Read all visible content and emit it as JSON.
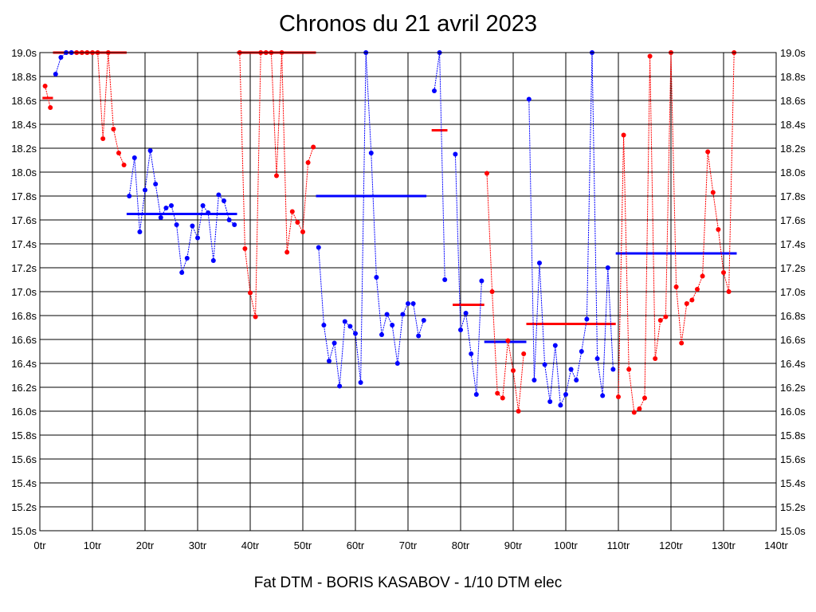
{
  "chart_data": {
    "type": "line",
    "title": "Chronos du 21 avril 2023",
    "xlabel": "Fat DTM - BORIS KASABOV - 1/10 DTM elec",
    "ylabel": "",
    "xlim": [
      0,
      140
    ],
    "ylim": [
      15.0,
      19.0
    ],
    "grid": true,
    "x_ticks": [
      {
        "value": 0,
        "label": "0tr"
      },
      {
        "value": 10,
        "label": "10tr"
      },
      {
        "value": 20,
        "label": "20tr"
      },
      {
        "value": 30,
        "label": "30tr"
      },
      {
        "value": 40,
        "label": "40tr"
      },
      {
        "value": 50,
        "label": "50tr"
      },
      {
        "value": 60,
        "label": "60tr"
      },
      {
        "value": 70,
        "label": "70tr"
      },
      {
        "value": 80,
        "label": "80tr"
      },
      {
        "value": 90,
        "label": "90tr"
      },
      {
        "value": 100,
        "label": "100tr"
      },
      {
        "value": 110,
        "label": "110tr"
      },
      {
        "value": 120,
        "label": "120tr"
      },
      {
        "value": 130,
        "label": "130tr"
      },
      {
        "value": 140,
        "label": "140tr"
      }
    ],
    "y_ticks": [
      {
        "value": 15.0,
        "label": "15.0s"
      },
      {
        "value": 15.2,
        "label": "15.2s"
      },
      {
        "value": 15.4,
        "label": "15.4s"
      },
      {
        "value": 15.6,
        "label": "15.6s"
      },
      {
        "value": 15.8,
        "label": "15.8s"
      },
      {
        "value": 16.0,
        "label": "16.0s"
      },
      {
        "value": 16.2,
        "label": "16.2s"
      },
      {
        "value": 16.4,
        "label": "16.4s"
      },
      {
        "value": 16.6,
        "label": "16.6s"
      },
      {
        "value": 16.8,
        "label": "16.8s"
      },
      {
        "value": 17.0,
        "label": "17.0s"
      },
      {
        "value": 17.2,
        "label": "17.2s"
      },
      {
        "value": 17.4,
        "label": "17.4s"
      },
      {
        "value": 17.6,
        "label": "17.6s"
      },
      {
        "value": 17.8,
        "label": "17.8s"
      },
      {
        "value": 18.0,
        "label": "18.0s"
      },
      {
        "value": 18.2,
        "label": "18.2s"
      },
      {
        "value": 18.4,
        "label": "18.4s"
      },
      {
        "value": 18.6,
        "label": "18.6s"
      },
      {
        "value": 18.8,
        "label": "18.8s"
      },
      {
        "value": 19.0,
        "label": "19.0s"
      }
    ],
    "colors": {
      "red": "#ff0000",
      "blue": "#0000ff",
      "grid": "#000000"
    },
    "series": [
      {
        "color": "#ff0000",
        "x": [
          1,
          2
        ],
        "y": [
          18.72,
          18.54
        ],
        "avg": 18.62
      },
      {
        "color": "#0000ff",
        "x": [
          3,
          4,
          5,
          6
        ],
        "y": [
          18.82,
          18.96,
          19.0,
          19.0
        ],
        "avg": null
      },
      {
        "color": "#ff0000",
        "x": [
          7,
          8,
          9,
          10,
          11,
          12,
          13,
          14,
          15,
          16
        ],
        "y": [
          19.0,
          19.0,
          19.0,
          19.0,
          19.0,
          18.28,
          19.0,
          18.36,
          18.16,
          18.06
        ],
        "avg": 19.0,
        "avg_x": [
          3,
          16
        ]
      },
      {
        "color": "#0000ff",
        "x": [
          17,
          18,
          19,
          20,
          21,
          22,
          23,
          24,
          25,
          26,
          27,
          28,
          29,
          30,
          31,
          32,
          33,
          34,
          35,
          36,
          37
        ],
        "y": [
          17.8,
          18.12,
          17.5,
          17.85,
          18.18,
          17.9,
          17.62,
          17.7,
          17.72,
          17.56,
          17.16,
          17.28,
          17.55,
          17.45,
          17.72,
          17.66,
          17.26,
          17.81,
          17.76,
          17.6,
          17.56
        ],
        "avg": 17.65
      },
      {
        "color": "#ff0000",
        "x": [
          38,
          39,
          40,
          41,
          42,
          43,
          44,
          45,
          46,
          47,
          48,
          49,
          50,
          51,
          52
        ],
        "y": [
          19.0,
          17.36,
          16.99,
          16.79,
          19.0,
          19.0,
          19.0,
          17.97,
          19.0,
          17.33,
          17.67,
          17.58,
          17.5,
          18.08,
          18.21
        ],
        "avg": 19.0,
        "avg_x": [
          38,
          52
        ]
      },
      {
        "color": "#0000ff",
        "x": [
          53,
          54,
          55,
          56,
          57,
          58,
          59,
          60,
          61,
          62,
          63,
          64,
          65,
          66,
          67,
          68,
          69,
          70,
          71,
          72,
          73
        ],
        "y": [
          17.37,
          16.72,
          16.42,
          16.57,
          16.21,
          16.75,
          16.71,
          16.65,
          16.24,
          19.0,
          18.16,
          17.12,
          16.64,
          16.81,
          16.72,
          16.4,
          16.81,
          16.9,
          16.9,
          16.63,
          16.76
        ],
        "avg": 17.8
      },
      {
        "color": "#0000ff",
        "x": [
          75,
          76,
          77
        ],
        "y": [
          18.68,
          19.0,
          17.1
        ],
        "avg": 18.35,
        "avg_color": "#ff0000"
      },
      {
        "color": "#0000ff",
        "x": [
          79,
          80,
          81,
          82,
          83,
          84
        ],
        "y": [
          18.15,
          16.68,
          16.82,
          16.48,
          16.14,
          17.09
        ],
        "avg": 16.89,
        "avg_color": "#ff0000"
      },
      {
        "color": "#ff0000",
        "x": [
          85,
          86,
          87,
          88,
          89,
          90,
          91,
          92
        ],
        "y": [
          17.99,
          17.0,
          16.15,
          16.11,
          16.59,
          16.34,
          16.0,
          16.48
        ],
        "avg": 16.58,
        "avg_color": "#0000ff"
      },
      {
        "color": "#0000ff",
        "x": [
          93,
          94,
          95,
          96,
          97,
          98,
          99,
          100,
          101,
          102,
          103,
          104,
          105,
          106,
          107,
          108,
          109
        ],
        "y": [
          18.61,
          16.26,
          17.24,
          16.39,
          16.08,
          16.55,
          16.05,
          16.14,
          16.35,
          16.26,
          16.5,
          16.77,
          19.0,
          16.44,
          16.13,
          17.2,
          16.35
        ],
        "avg": 16.73,
        "avg_color": "#ff0000"
      },
      {
        "color": "#ff0000",
        "x": [
          110,
          111,
          112,
          113,
          114,
          115,
          116,
          117,
          118,
          119,
          120,
          121,
          122,
          123,
          124,
          125,
          126,
          127,
          128,
          129,
          130,
          131,
          132
        ],
        "y": [
          16.12,
          18.31,
          16.35,
          15.99,
          16.02,
          16.11,
          18.97,
          16.44,
          16.76,
          16.79,
          19.0,
          17.04,
          16.57,
          16.9,
          16.93,
          17.02,
          17.13,
          18.17,
          17.83,
          17.52,
          17.16,
          17.0,
          19.0
        ],
        "avg": 17.32,
        "avg_color": "#0000ff"
      }
    ]
  },
  "page": {
    "title": "Chronos du 21 avril 2023",
    "footer": "Fat DTM - BORIS KASABOV - 1/10 DTM elec"
  }
}
